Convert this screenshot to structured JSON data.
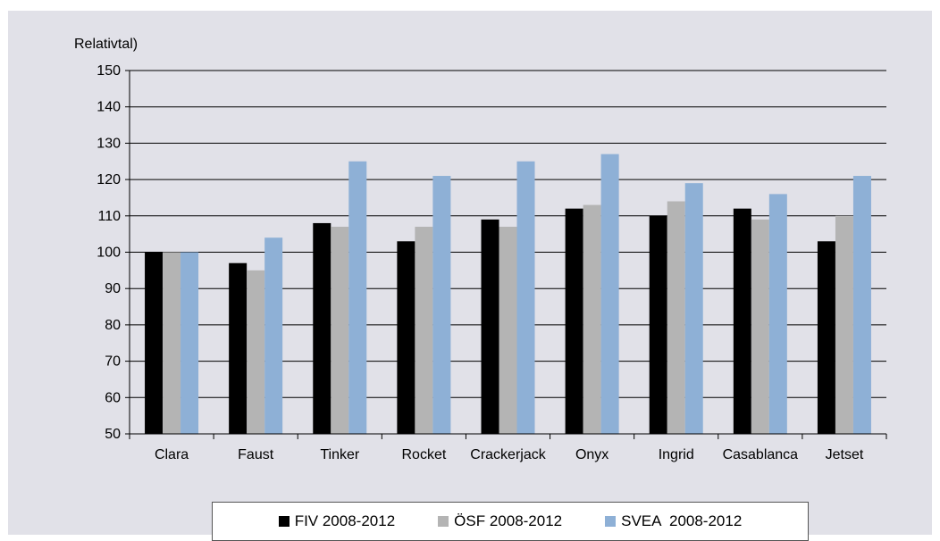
{
  "chart_data": {
    "type": "bar",
    "ylabel": "Relativtal)",
    "ylim": [
      50,
      150
    ],
    "ytick_step": 10,
    "grid": true,
    "legend_position": "bottom",
    "categories": [
      "Clara",
      "Faust",
      "Tinker",
      "Rocket",
      "Crackerjack",
      "Onyx",
      "Ingrid",
      "Casablanca",
      "Jetset"
    ],
    "series": [
      {
        "name": "FIV 2008-2012",
        "color": "#000000",
        "values": [
          100,
          97,
          108,
          103,
          109,
          112,
          110,
          112,
          103
        ]
      },
      {
        "name": "ÖSF 2008-2012",
        "color": "#b4b4b4",
        "values": [
          100,
          95,
          107,
          107,
          107,
          113,
          114,
          109,
          110
        ]
      },
      {
        "name": "SVEA  2008-2012",
        "color": "#8eb0d6",
        "values": [
          100,
          104,
          125,
          121,
          125,
          127,
          119,
          116,
          121
        ]
      }
    ]
  }
}
